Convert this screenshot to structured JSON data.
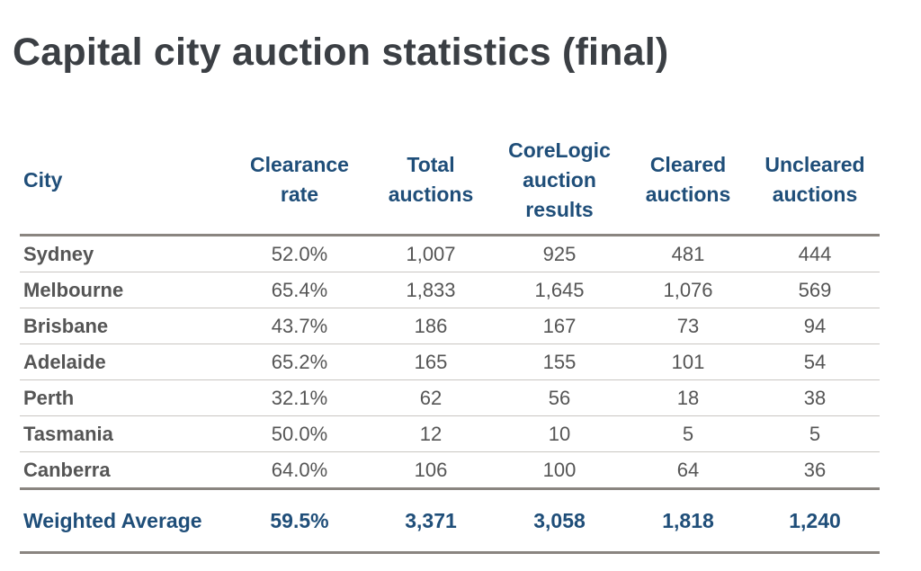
{
  "title": "Capital city auction statistics (final)",
  "table": {
    "headers": [
      [
        "City"
      ],
      [
        "Clearance",
        "rate"
      ],
      [
        "Total",
        "auctions"
      ],
      [
        "CoreLogic",
        "auction",
        "results"
      ],
      [
        "Cleared",
        "auctions"
      ],
      [
        "Uncleared",
        "auctions"
      ]
    ],
    "rows": [
      [
        "Sydney",
        "52.0%",
        "1,007",
        "925",
        "481",
        "444"
      ],
      [
        "Melbourne",
        "65.4%",
        "1,833",
        "1,645",
        "1,076",
        "569"
      ],
      [
        "Brisbane",
        "43.7%",
        "186",
        "167",
        "73",
        "94"
      ],
      [
        "Adelaide",
        "65.2%",
        "165",
        "155",
        "101",
        "54"
      ],
      [
        "Perth",
        "32.1%",
        "62",
        "56",
        "18",
        "38"
      ],
      [
        "Tasmania",
        "50.0%",
        "12",
        "10",
        "5",
        "5"
      ],
      [
        "Canberra",
        "64.0%",
        "106",
        "100",
        "64",
        "36"
      ]
    ],
    "footer": [
      "Weighted Average",
      "59.5%",
      "3,371",
      "3,058",
      "1,818",
      "1,240"
    ]
  },
  "colors": {
    "title": "#3b3f44",
    "header_text": "#1f4e79",
    "body_text": "#555555",
    "rule": "#8a8580"
  }
}
